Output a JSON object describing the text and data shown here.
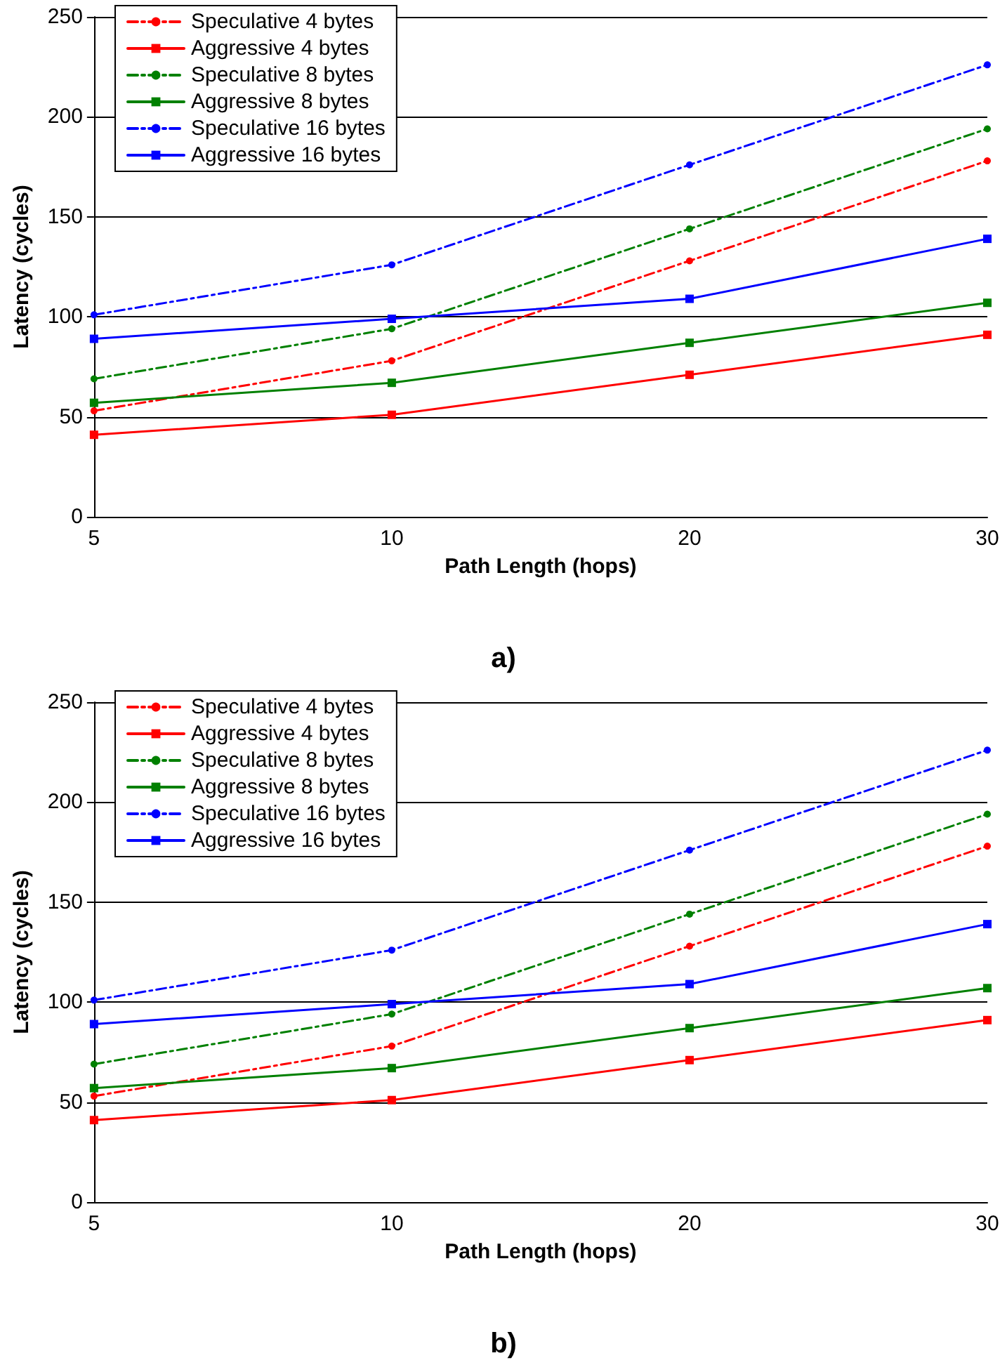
{
  "chart_data": [
    {
      "type": "line",
      "title": "a)",
      "xlabel": "Path Length (hops)",
      "ylabel": "Latency (cycles)",
      "categories": [
        "5",
        "10",
        "20",
        "30"
      ],
      "ylim": [
        0,
        250
      ],
      "yticks": [
        0,
        50,
        100,
        150,
        200,
        250
      ],
      "grid": "y",
      "legend": "top left",
      "series": [
        {
          "name": "Speculative 4 bytes",
          "color": "#ff0000",
          "values": [
            53,
            78,
            128,
            178
          ],
          "marker": "circle",
          "line_style": "dashed"
        },
        {
          "name": "Aggressive 4 bytes",
          "color": "#ff0000",
          "values": [
            41,
            51,
            71,
            91
          ],
          "marker": "square",
          "line_style": "solid"
        },
        {
          "name": "Speculative 8 bytes",
          "color": "#008000",
          "values": [
            69,
            94,
            144,
            194
          ],
          "marker": "circle",
          "line_style": "dashed"
        },
        {
          "name": "Aggressive 8 bytes",
          "color": "#008000",
          "values": [
            57,
            67,
            87,
            107
          ],
          "marker": "square",
          "line_style": "solid"
        },
        {
          "name": "Speculative 16 bytes",
          "color": "#0000ff",
          "values": [
            101,
            126,
            176,
            226
          ],
          "marker": "circle",
          "line_style": "dashed"
        },
        {
          "name": "Aggressive 16 bytes",
          "color": "#0000ff",
          "values": [
            89,
            99,
            109,
            139
          ],
          "marker": "square",
          "line_style": "solid"
        }
      ]
    },
    {
      "type": "line",
      "title": "b)",
      "xlabel": "Path Length (hops)",
      "ylabel": "Latency (cycles)",
      "categories": [
        "5",
        "10",
        "20",
        "30"
      ],
      "ylim": [
        0,
        250
      ],
      "yticks": [
        0,
        50,
        100,
        150,
        200,
        250
      ],
      "grid": "y",
      "legend": "top left",
      "series": [
        {
          "name": "Speculative 4 bytes",
          "color": "#ff0000",
          "values": [
            53,
            78,
            128,
            178
          ],
          "marker": "circle",
          "line_style": "dashed"
        },
        {
          "name": "Aggressive 4 bytes",
          "color": "#ff0000",
          "values": [
            41,
            51,
            71,
            91
          ],
          "marker": "square",
          "line_style": "solid"
        },
        {
          "name": "Speculative 8 bytes",
          "color": "#008000",
          "values": [
            69,
            94,
            144,
            194
          ],
          "marker": "circle",
          "line_style": "dashed"
        },
        {
          "name": "Aggressive 8 bytes",
          "color": "#008000",
          "values": [
            57,
            67,
            87,
            107
          ],
          "marker": "square",
          "line_style": "solid"
        },
        {
          "name": "Speculative 16 bytes",
          "color": "#0000ff",
          "values": [
            101,
            126,
            176,
            226
          ],
          "marker": "circle",
          "line_style": "dashed"
        },
        {
          "name": "Aggressive 16 bytes",
          "color": "#0000ff",
          "values": [
            89,
            99,
            109,
            139
          ],
          "marker": "square",
          "line_style": "solid"
        }
      ]
    }
  ]
}
